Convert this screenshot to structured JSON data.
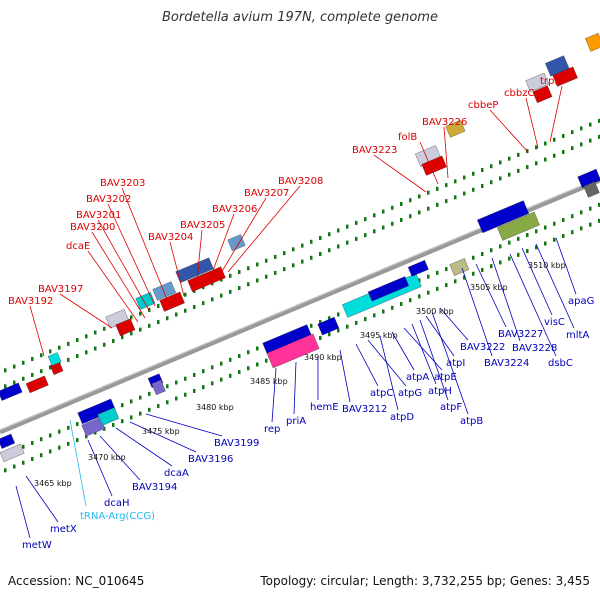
{
  "header": {
    "title": "Bordetella avium 197N, complete genome"
  },
  "footer": {
    "accession": "Accession: NC_010645",
    "summary": "Topology: circular; Length: 3,732,255 bp; Genes: 3,455"
  },
  "colors": {
    "forward_label": "#dd0000",
    "reverse_label": "#0000bb",
    "trna_label": "#22bbee",
    "backbone": "#888888",
    "ticks": "#117711"
  },
  "scale_labels": [
    "3465 kbp",
    "3470 kbp",
    "3475 kbp",
    "3480 kbp",
    "3485 kbp",
    "3490 kbp",
    "3495 kbp",
    "3500 kbp",
    "3505 kbp",
    "3510 kbp"
  ],
  "forward_genes": [
    "BAV3192",
    "BAV3197",
    "dcaE",
    "BAV3200",
    "BAV3201",
    "BAV3202",
    "BAV3203",
    "BAV3204",
    "BAV3205",
    "BAV3206",
    "BAV3207",
    "BAV3208",
    "BAV3223",
    "folB",
    "BAV3226",
    "cbbeP",
    "cbbzC",
    "trpE"
  ],
  "reverse_genes": [
    "metW",
    "metX",
    "tRNA-Arg(CCG)",
    "dcaH",
    "BAV3194",
    "dcaA",
    "BAV3196",
    "BAV3199",
    "rep",
    "priA",
    "hemE",
    "BAV3212",
    "atpC",
    "atpG",
    "atpD",
    "atpA",
    "atpH",
    "atpE",
    "atpF",
    "atpI",
    "atpB",
    "BAV3222",
    "BAV3224",
    "BAV3227",
    "BAV3228",
    "dsbC",
    "visC",
    "mltA",
    "apaG"
  ]
}
